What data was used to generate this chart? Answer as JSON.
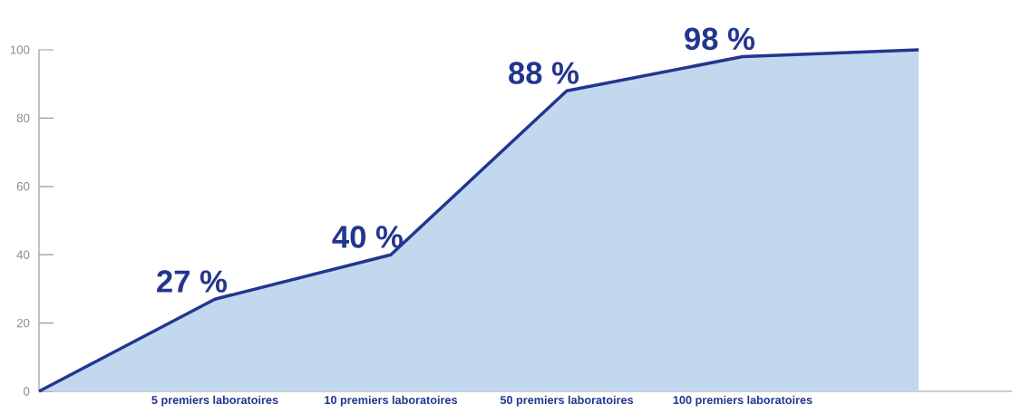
{
  "chart_data": {
    "type": "area",
    "categories": [
      null,
      "5 premiers laboratoires",
      "10 premiers laboratoires",
      "50 premiers laboratoires",
      "100 premiers laboratoires",
      null
    ],
    "series": [
      {
        "color": "#23368f",
        "values": [
          0,
          27,
          40,
          88,
          98,
          100
        ],
        "value_labels": [
          null,
          "27 %",
          "40 %",
          "88 %",
          "98 %",
          null
        ]
      }
    ],
    "ylim": [
      0,
      100
    ],
    "yticks": [
      0,
      20,
      40,
      60,
      80,
      100
    ],
    "grid": false,
    "marker": "none",
    "line_style": "solid"
  }
}
